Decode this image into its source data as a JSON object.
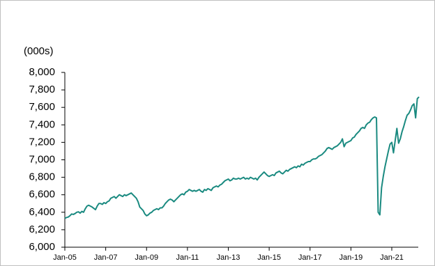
{
  "chart_data": {
    "type": "line",
    "unit_label": "(000s)",
    "categories": [
      "Jan-05",
      null,
      null,
      null,
      null,
      null,
      null,
      null,
      null,
      null,
      null,
      null,
      null,
      null,
      null,
      null,
      null,
      null,
      null,
      null,
      null,
      null,
      null,
      null,
      "Jan-07",
      null,
      null,
      null,
      null,
      null,
      null,
      null,
      null,
      null,
      null,
      null,
      null,
      null,
      null,
      null,
      null,
      null,
      null,
      null,
      null,
      null,
      null,
      null,
      "Jan-09",
      null,
      null,
      null,
      null,
      null,
      null,
      null,
      null,
      null,
      null,
      null,
      null,
      null,
      null,
      null,
      null,
      null,
      null,
      null,
      null,
      null,
      null,
      null,
      "Jan-11",
      null,
      null,
      null,
      null,
      null,
      null,
      null,
      null,
      null,
      null,
      null,
      null,
      null,
      null,
      null,
      null,
      null,
      null,
      null,
      null,
      null,
      null,
      null,
      "Jan-13",
      null,
      null,
      null,
      null,
      null,
      null,
      null,
      null,
      null,
      null,
      null,
      null,
      null,
      null,
      null,
      null,
      null,
      null,
      null,
      null,
      null,
      null,
      null,
      "Jan-15",
      null,
      null,
      null,
      null,
      null,
      null,
      null,
      null,
      null,
      null,
      null,
      null,
      null,
      null,
      null,
      null,
      null,
      null,
      null,
      null,
      null,
      null,
      null,
      "Jan-17",
      null,
      null,
      null,
      null,
      null,
      null,
      null,
      null,
      null,
      null,
      null,
      null,
      null,
      null,
      null,
      null,
      null,
      null,
      null,
      null,
      null,
      null,
      null,
      "Jan-19",
      null,
      null,
      null,
      null,
      null,
      null,
      null,
      null,
      null,
      null,
      null,
      null,
      null,
      null,
      null,
      null,
      null,
      null,
      null,
      null,
      null,
      null,
      null,
      "Jan-21",
      null,
      null,
      null,
      null,
      null,
      null,
      null,
      null,
      null,
      null,
      null,
      null,
      null,
      null,
      null,
      null
    ],
    "values": [
      6330,
      6340,
      6345,
      6360,
      6380,
      6375,
      6385,
      6400,
      6405,
      6390,
      6410,
      6400,
      6440,
      6470,
      6480,
      6470,
      6460,
      6445,
      6430,
      6470,
      6500,
      6500,
      6490,
      6510,
      6500,
      6520,
      6530,
      6560,
      6570,
      6580,
      6560,
      6580,
      6600,
      6590,
      6580,
      6600,
      6590,
      6600,
      6610,
      6620,
      6600,
      6580,
      6560,
      6520,
      6460,
      6440,
      6420,
      6380,
      6360,
      6370,
      6390,
      6400,
      6420,
      6430,
      6440,
      6430,
      6450,
      6450,
      6470,
      6500,
      6520,
      6540,
      6550,
      6540,
      6520,
      6540,
      6560,
      6580,
      6600,
      6610,
      6600,
      6630,
      6640,
      6660,
      6650,
      6640,
      6650,
      6640,
      6650,
      6660,
      6640,
      6630,
      6660,
      6650,
      6670,
      6660,
      6650,
      6680,
      6690,
      6700,
      6690,
      6710,
      6720,
      6740,
      6760,
      6770,
      6780,
      6760,
      6770,
      6790,
      6780,
      6780,
      6790,
      6780,
      6790,
      6800,
      6780,
      6790,
      6780,
      6800,
      6790,
      6780,
      6790,
      6770,
      6800,
      6820,
      6840,
      6860,
      6840,
      6820,
      6810,
      6820,
      6830,
      6820,
      6850,
      6860,
      6870,
      6850,
      6840,
      6860,
      6880,
      6870,
      6890,
      6900,
      6910,
      6920,
      6910,
      6930,
      6920,
      6950,
      6940,
      6960,
      6970,
      6980,
      6980,
      7000,
      7010,
      7010,
      7020,
      7040,
      7050,
      7060,
      7080,
      7100,
      7130,
      7140,
      7130,
      7120,
      7140,
      7150,
      7160,
      7180,
      7200,
      7240,
      7150,
      7190,
      7200,
      7210,
      7220,
      7250,
      7260,
      7290,
      7310,
      7330,
      7360,
      7370,
      7360,
      7400,
      7420,
      7430,
      7460,
      7480,
      7490,
      7480,
      6400,
      6370,
      6680,
      6810,
      6920,
      7010,
      7100,
      7180,
      7200,
      7080,
      7220,
      7360,
      7190,
      7240,
      7320,
      7380,
      7450,
      7510,
      7530,
      7570,
      7620,
      7640,
      7480,
      7700,
      7720
    ],
    "color": "#1a8a80",
    "ylim": [
      6000,
      8000
    ],
    "yticks": [
      {
        "value": 6000,
        "label": "6,000"
      },
      {
        "value": 6200,
        "label": "6,200"
      },
      {
        "value": 6400,
        "label": "6,400"
      },
      {
        "value": 6600,
        "label": "6,600"
      },
      {
        "value": 6800,
        "label": "6,800"
      },
      {
        "value": 7000,
        "label": "7,000"
      },
      {
        "value": 7200,
        "label": "7,200"
      },
      {
        "value": 7400,
        "label": "7,400"
      },
      {
        "value": 7600,
        "label": "7,600"
      },
      {
        "value": 7800,
        "label": "7,800"
      },
      {
        "value": 8000,
        "label": "8,000"
      }
    ],
    "grid": false
  }
}
